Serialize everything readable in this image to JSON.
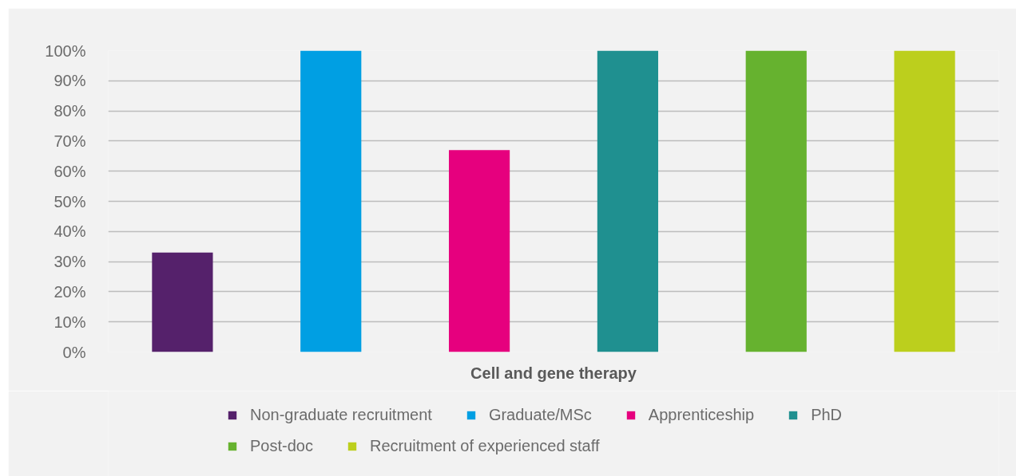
{
  "chart_data": {
    "type": "bar",
    "categories": [
      "Cell and gene therapy"
    ],
    "series": [
      {
        "name": "Non-graduate recruitment",
        "color": "#55216b",
        "values": [
          33
        ]
      },
      {
        "name": "Graduate/MSc",
        "color": "#009fe3",
        "values": [
          100
        ]
      },
      {
        "name": "Apprenticeship",
        "color": "#e6007e",
        "values": [
          67
        ]
      },
      {
        "name": "PhD",
        "color": "#1f9090",
        "values": [
          100
        ]
      },
      {
        "name": "Post-doc",
        "color": "#66b22f",
        "values": [
          100
        ]
      },
      {
        "name": "Recruitment of experienced staff",
        "color": "#bccf1d",
        "values": [
          100
        ]
      }
    ],
    "ylim": [
      0,
      100
    ],
    "yticks": [
      {
        "value": 0,
        "label": "0%"
      },
      {
        "value": 10,
        "label": "10%"
      },
      {
        "value": 20,
        "label": "20%"
      },
      {
        "value": 30,
        "label": "30%"
      },
      {
        "value": 40,
        "label": "40%"
      },
      {
        "value": 50,
        "label": "50%"
      },
      {
        "value": 60,
        "label": "60%"
      },
      {
        "value": 70,
        "label": "70%"
      },
      {
        "value": 80,
        "label": "80%"
      },
      {
        "value": 90,
        "label": "90%"
      },
      {
        "value": 100,
        "label": "100%"
      }
    ],
    "grid": "y",
    "legend": "bottom"
  }
}
